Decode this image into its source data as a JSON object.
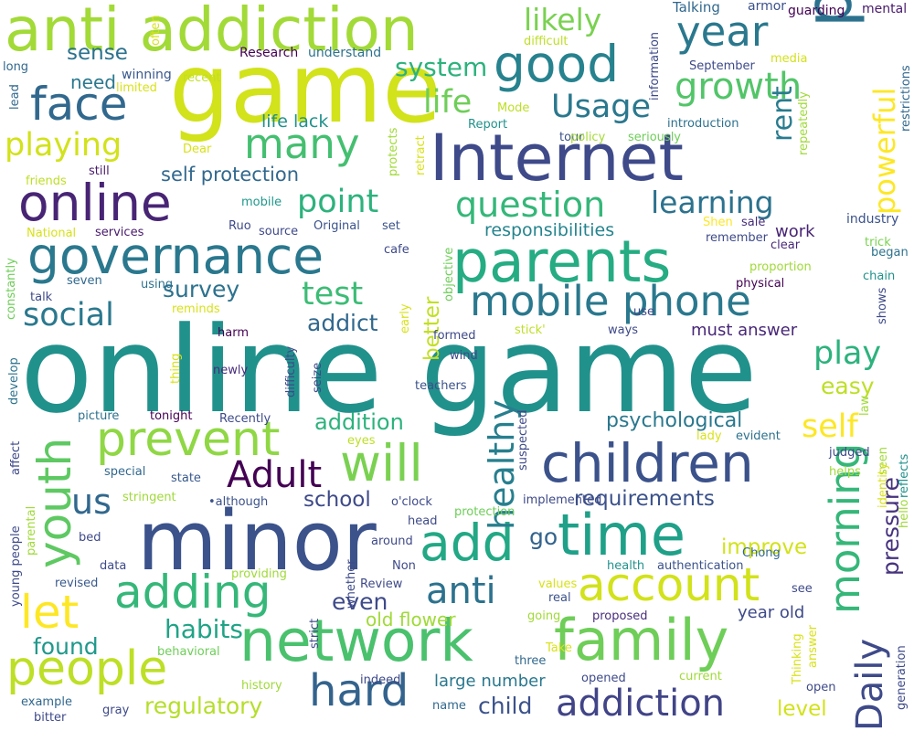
{
  "words": [
    {
      "text": "online game",
      "color": "#21918c"
    },
    {
      "text": "minor",
      "color": "#3b528b"
    },
    {
      "text": "game",
      "color": "#d2e21b"
    },
    {
      "text": "Internet",
      "color": "#3e4a89"
    },
    {
      "text": "platform",
      "color": "#2c728e"
    },
    {
      "text": "anti addiction",
      "color": "#a2da37"
    },
    {
      "text": "parents",
      "color": "#25ac82"
    },
    {
      "text": "network",
      "color": "#4ac16d"
    },
    {
      "text": "family",
      "color": "#6ece58"
    },
    {
      "text": "time",
      "color": "#1fa088"
    },
    {
      "text": "children",
      "color": "#3b528b"
    },
    {
      "text": "governance",
      "color": "#2a788e"
    },
    {
      "text": "good",
      "color": "#26828e"
    },
    {
      "text": "online",
      "color": "#482475"
    },
    {
      "text": "will",
      "color": "#7ad151"
    },
    {
      "text": "add",
      "color": "#22a884"
    },
    {
      "text": "people",
      "color": "#bddf26"
    },
    {
      "text": "account",
      "color": "#d2e21b"
    },
    {
      "text": "mobile phone",
      "color": "#2a788e"
    },
    {
      "text": "face",
      "color": "#31688e"
    },
    {
      "text": "adding",
      "color": "#35b779"
    },
    {
      "text": "prevent",
      "color": "#8fd744"
    },
    {
      "text": "youth",
      "color": "#5ec962"
    },
    {
      "text": "morning",
      "color": "#35b779"
    },
    {
      "text": "many",
      "color": "#44bf70"
    },
    {
      "text": "year",
      "color": "#2a788e"
    },
    {
      "text": "Daily",
      "color": "#3e4a89"
    },
    {
      "text": "hard",
      "color": "#33638d"
    },
    {
      "text": "addiction",
      "color": "#414487"
    },
    {
      "text": "let",
      "color": "#fde725"
    },
    {
      "text": "growth",
      "color": "#52c569"
    },
    {
      "text": "healthy",
      "color": "#277f8e"
    },
    {
      "text": "Adult",
      "color": "#440154"
    },
    {
      "text": "question",
      "color": "#35b779"
    },
    {
      "text": "social",
      "color": "#2a788e"
    },
    {
      "text": "us",
      "color": "#31688e"
    },
    {
      "text": "anti",
      "color": "#2c728e"
    },
    {
      "text": "Usage",
      "color": "#2a788e"
    },
    {
      "text": "powerful",
      "color": "#fde725"
    },
    {
      "text": "self",
      "color": "#fde725"
    },
    {
      "text": "playing",
      "color": "#d2e21b"
    },
    {
      "text": "point",
      "color": "#2db27d"
    },
    {
      "text": "test",
      "color": "#3cbc75"
    },
    {
      "text": "life",
      "color": "#6ece58"
    },
    {
      "text": "play",
      "color": "#2db27d"
    },
    {
      "text": "likely",
      "color": "#7ad151"
    },
    {
      "text": "learning",
      "color": "#2c728e"
    },
    {
      "text": "system",
      "color": "#2db27d"
    },
    {
      "text": "rent",
      "color": "#287c8e"
    },
    {
      "text": "habits",
      "color": "#20a386"
    },
    {
      "text": "survey",
      "color": "#2c728e"
    },
    {
      "text": "addict",
      "color": "#31688e"
    },
    {
      "text": "addition",
      "color": "#2db27d"
    },
    {
      "text": "psychological",
      "color": "#2a788e"
    },
    {
      "text": "requirements",
      "color": "#3b528b"
    },
    {
      "text": "pressure",
      "color": "#46337e"
    },
    {
      "text": "regulatory",
      "color": "#b5de2b"
    },
    {
      "text": "improve",
      "color": "#d2e21b"
    },
    {
      "text": "better",
      "color": "#c2df23"
    },
    {
      "text": "easy",
      "color": "#bddf26"
    },
    {
      "text": "child",
      "color": "#3b528b"
    },
    {
      "text": "found",
      "color": "#1f988b"
    },
    {
      "text": "even",
      "color": "#3e4a89"
    },
    {
      "text": "school",
      "color": "#3e4a89"
    },
    {
      "text": "self protection",
      "color": "#31688e"
    },
    {
      "text": "responsibilities",
      "color": "#25848e"
    },
    {
      "text": "level",
      "color": "#d2e21b"
    },
    {
      "text": "go",
      "color": "#33638d"
    },
    {
      "text": "sense",
      "color": "#2c728e"
    },
    {
      "text": "need",
      "color": "#2a788e"
    },
    {
      "text": "work",
      "color": "#482475"
    },
    {
      "text": "old flower",
      "color": "#a0da39"
    },
    {
      "text": "large number",
      "color": "#2a788e"
    },
    {
      "text": "life lack",
      "color": "#21918c"
    },
    {
      "text": "must answer",
      "color": "#482878"
    },
    {
      "text": "year old",
      "color": "#3e4a89"
    },
    {
      "text": "Talking",
      "color": "#31688e"
    },
    {
      "text": "armor",
      "color": "#3b528b"
    },
    {
      "text": "guarding",
      "color": "#440154"
    },
    {
      "text": "mental",
      "color": "#481a6c"
    },
    {
      "text": "Research",
      "color": "#440154"
    },
    {
      "text": "understand",
      "color": "#2c728e"
    },
    {
      "text": "recent",
      "color": "#c2df23"
    },
    {
      "text": "difficult",
      "color": "#bddf26"
    },
    {
      "text": "September",
      "color": "#3e4a89"
    },
    {
      "text": "media",
      "color": "#d2e21b"
    },
    {
      "text": "winning",
      "color": "#38598c"
    },
    {
      "text": "limited",
      "color": "#d8e219"
    },
    {
      "text": "long",
      "color": "#31688e"
    },
    {
      "text": "Mode",
      "color": "#bddf26"
    },
    {
      "text": "Report",
      "color": "#21918c"
    },
    {
      "text": "introduction",
      "color": "#2c728e"
    },
    {
      "text": "tour",
      "color": "#3b528b"
    },
    {
      "text": "policy",
      "color": "#a5db36"
    },
    {
      "text": "seriously",
      "color": "#6ece58"
    },
    {
      "text": "Dear",
      "color": "#d8e219"
    },
    {
      "text": "friends",
      "color": "#bddf26"
    },
    {
      "text": "still",
      "color": "#481a6c"
    },
    {
      "text": "mobile",
      "color": "#1f988b"
    },
    {
      "text": "Ruo",
      "color": "#3e4a89"
    },
    {
      "text": "source",
      "color": "#3e4a89"
    },
    {
      "text": "Original",
      "color": "#3b528b"
    },
    {
      "text": "set",
      "color": "#3b528b"
    },
    {
      "text": "Shen",
      "color": "#fde725"
    },
    {
      "text": "sale",
      "color": "#472d7b"
    },
    {
      "text": "industry",
      "color": "#3b528b"
    },
    {
      "text": "remember",
      "color": "#3e4a89"
    },
    {
      "text": "clear",
      "color": "#482878"
    },
    {
      "text": "trick",
      "color": "#7ad151"
    },
    {
      "text": "began",
      "color": "#2c728e"
    },
    {
      "text": "National",
      "color": "#d8e219"
    },
    {
      "text": "services",
      "color": "#481a6c"
    },
    {
      "text": "cafe",
      "color": "#3e4a89"
    },
    {
      "text": "proportion",
      "color": "#a0da39"
    },
    {
      "text": "chain",
      "color": "#21918c"
    },
    {
      "text": "physical",
      "color": "#440154"
    },
    {
      "text": "seven",
      "color": "#31688e"
    },
    {
      "text": "using",
      "color": "#2c728e"
    },
    {
      "text": "talk",
      "color": "#3e4a89"
    },
    {
      "text": "reminds",
      "color": "#d8e219"
    },
    {
      "text": "use",
      "color": "#3e4a89"
    },
    {
      "text": "ways",
      "color": "#3e4a89"
    },
    {
      "text": "stick'",
      "color": "#bddf26"
    },
    {
      "text": "formed",
      "color": "#3e4a89"
    },
    {
      "text": "wind",
      "color": "#3e4a89"
    },
    {
      "text": "harm",
      "color": "#440154"
    },
    {
      "text": "newly",
      "color": "#472d7b"
    },
    {
      "text": "teachers",
      "color": "#3b528b"
    },
    {
      "text": "picture",
      "color": "#2c728e"
    },
    {
      "text": "tonight",
      "color": "#440154"
    },
    {
      "text": "Recently",
      "color": "#3e4a89"
    },
    {
      "text": "eyes",
      "color": "#bddf26"
    },
    {
      "text": "lady",
      "color": "#d8e219"
    },
    {
      "text": "evident",
      "color": "#2c728e"
    },
    {
      "text": "judged",
      "color": "#3e4a89"
    },
    {
      "text": "helps",
      "color": "#a0da39"
    },
    {
      "text": "special",
      "color": "#31688e"
    },
    {
      "text": "state",
      "color": "#38598c"
    },
    {
      "text": "stringent",
      "color": "#a0da39"
    },
    {
      "text": "•although",
      "color": "#3b528b"
    },
    {
      "text": "o'clock",
      "color": "#3e4a89"
    },
    {
      "text": "implemented",
      "color": "#3e4a89"
    },
    {
      "text": "protection",
      "color": "#6ece58"
    },
    {
      "text": "head",
      "color": "#3e4a89"
    },
    {
      "text": "Chong",
      "color": "#31688e"
    },
    {
      "text": "bed",
      "color": "#3e4a89"
    },
    {
      "text": "around",
      "color": "#3e4a89"
    },
    {
      "text": "data",
      "color": "#3e4a89"
    },
    {
      "text": "Non",
      "color": "#3e4a89"
    },
    {
      "text": "health",
      "color": "#21918c"
    },
    {
      "text": "authentication",
      "color": "#3b528b"
    },
    {
      "text": "providing",
      "color": "#a0da39"
    },
    {
      "text": "revised",
      "color": "#38598c"
    },
    {
      "text": "Review",
      "color": "#3e4a89"
    },
    {
      "text": "values",
      "color": "#d8e219"
    },
    {
      "text": "real",
      "color": "#3b528b"
    },
    {
      "text": "see",
      "color": "#3e4a89"
    },
    {
      "text": "going",
      "color": "#a0da39"
    },
    {
      "text": "proposed",
      "color": "#472d7b"
    },
    {
      "text": "Take",
      "color": "#d8e219"
    },
    {
      "text": "behavioral",
      "color": "#6ece58"
    },
    {
      "text": "three",
      "color": "#31688e"
    },
    {
      "text": "current",
      "color": "#a0da39"
    },
    {
      "text": "opened",
      "color": "#3e4a89"
    },
    {
      "text": "indeed",
      "color": "#3e4a89"
    },
    {
      "text": "history",
      "color": "#a0da39"
    },
    {
      "text": "example",
      "color": "#31688e"
    },
    {
      "text": "gray",
      "color": "#3e4a89"
    },
    {
      "text": "bitter",
      "color": "#3e4a89"
    },
    {
      "text": "name",
      "color": "#31688e"
    },
    {
      "text": "open",
      "color": "#3e4a89"
    },
    {
      "text": "often",
      "color": "#d8e219"
    },
    {
      "text": "lead",
      "color": "#31688e"
    },
    {
      "text": "information",
      "color": "#3e4a89"
    },
    {
      "text": "repeatedly",
      "color": "#a0da39"
    },
    {
      "text": "restrictions",
      "color": "#31688e"
    },
    {
      "text": "protects",
      "color": "#a0da39"
    },
    {
      "text": "retract",
      "color": "#d8e219"
    },
    {
      "text": "objective",
      "color": "#6ece58"
    },
    {
      "text": "early",
      "color": "#d8e219"
    },
    {
      "text": "constantly",
      "color": "#6ece58"
    },
    {
      "text": "shows",
      "color": "#3e4a89"
    },
    {
      "text": "thing",
      "color": "#d8e219"
    },
    {
      "text": "difficulty",
      "color": "#3e4a89"
    },
    {
      "text": "seize",
      "color": "#3e4a89"
    },
    {
      "text": "develop",
      "color": "#2c728e"
    },
    {
      "text": "affect",
      "color": "#3e4a89"
    },
    {
      "text": "young people",
      "color": "#3e4a89"
    },
    {
      "text": "parental",
      "color": "#a0da39"
    },
    {
      "text": "suspected",
      "color": "#3e4a89"
    },
    {
      "text": "law",
      "color": "#a0da39"
    },
    {
      "text": "seen",
      "color": "#a0da39"
    },
    {
      "text": "identity",
      "color": "#d8e219"
    },
    {
      "text": "reflects",
      "color": "#21918c"
    },
    {
      "text": "hello",
      "color": "#a0da39"
    },
    {
      "text": "strict",
      "color": "#3e4a89"
    },
    {
      "text": "whether",
      "color": "#3e4a89"
    },
    {
      "text": "answer",
      "color": "#d8e219"
    },
    {
      "text": "Thinking",
      "color": "#d8e219"
    },
    {
      "text": "generation",
      "color": "#3e4a89"
    }
  ]
}
